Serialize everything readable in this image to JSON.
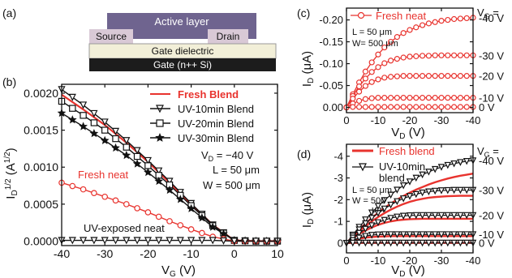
{
  "colors": {
    "red": "#e8332e",
    "black": "#111111",
    "layer": "#6f648f",
    "contact": "#d9c9d6",
    "dielectric": "#f2efd8",
    "gate": "#1c1c1c"
  },
  "panel_labels": {
    "a": "(a)",
    "b": "(b)",
    "c": "(c)",
    "d": "(d)"
  },
  "device": {
    "active_layer": "Active layer",
    "source": "Source",
    "drain": "Drain",
    "dielectric": "Gate dielectric",
    "gate": "Gate (n++ Si)"
  },
  "chart_data": [
    {
      "panel": "b",
      "type": "line",
      "xlabel": "V_G (V)",
      "ylabel": "I_D^1/2 (A^1/2)",
      "xlim": [
        -40,
        10
      ],
      "ylim": [
        -6e-05,
        0.00212
      ],
      "xticks": [
        "-40",
        "-30",
        "-20",
        "-10",
        "0",
        "10"
      ],
      "yticks": [
        "0.0000",
        "0.0005",
        "0.0010",
        "0.0015",
        "0.0020"
      ],
      "annotations": [
        "V_D = −40 V",
        "L = 50 μm",
        "W = 500 μm",
        "Fresh neat",
        "UV-exposed neat"
      ],
      "series": [
        {
          "name": "Fresh Blend",
          "marker": "none",
          "x": [
            -40,
            -35,
            -30,
            -25,
            -20,
            -15,
            -10,
            -5,
            0,
            5,
            10
          ],
          "y": [
            0.00198,
            0.00178,
            0.00157,
            0.00133,
            0.00107,
            0.00079,
            0.0005,
            0.00022,
            1e-05,
            0.0,
            0.0
          ]
        },
        {
          "name": "UV-10min Blend",
          "marker": "triangle-down",
          "x": [
            -40,
            -35,
            -30,
            -25,
            -20,
            -15,
            -10,
            -5,
            0,
            5,
            10
          ],
          "y": [
            0.00205,
            0.00184,
            0.00161,
            0.00136,
            0.00109,
            0.00081,
            0.00051,
            0.00022,
            1e-05,
            0.0,
            0.0
          ]
        },
        {
          "name": "UV-20min Blend",
          "marker": "square",
          "x": [
            -40,
            -35,
            -30,
            -25,
            -20,
            -15,
            -10,
            -5,
            0,
            5,
            10
          ],
          "y": [
            0.00189,
            0.0017,
            0.0015,
            0.00127,
            0.00102,
            0.00076,
            0.00048,
            0.00021,
            1e-05,
            0.0,
            0.0
          ]
        },
        {
          "name": "UV-30min Blend",
          "marker": "star",
          "x": [
            -40,
            -35,
            -30,
            -25,
            -20,
            -15,
            -10,
            -5,
            0,
            5,
            10
          ],
          "y": [
            0.00173,
            0.00155,
            0.00136,
            0.00116,
            0.00093,
            0.00069,
            0.00044,
            0.00019,
            1e-05,
            0.0,
            0.0
          ]
        },
        {
          "name": "Fresh neat",
          "marker": "circle",
          "x": [
            -40,
            -35,
            -30,
            -25,
            -20,
            -15,
            -10,
            -5,
            0,
            5,
            10
          ],
          "y": [
            0.00079,
            0.0007,
            0.0006,
            0.0005,
            0.00039,
            0.00027,
            0.00016,
            6e-05,
            0.0,
            0.0,
            0.0
          ]
        },
        {
          "name": "UV-exposed neat",
          "marker": "triangle-down",
          "x": [
            -40,
            -35,
            -30,
            -25,
            -20,
            -15,
            -10,
            -5,
            0,
            5,
            10
          ],
          "y": [
            1e-05,
            1e-05,
            1e-05,
            1e-05,
            1e-05,
            1e-05,
            1e-05,
            1e-05,
            0.0,
            0.0,
            0.0
          ]
        }
      ]
    },
    {
      "panel": "c",
      "type": "line",
      "xlabel": "V_D (V)",
      "ylabel": "I_D (μA)",
      "xlim": [
        0,
        -40
      ],
      "ylim": [
        0.012,
        -0.227
      ],
      "xticks": [
        "0",
        "-10",
        "-20",
        "-30",
        "-40"
      ],
      "yticks": [
        "0.00",
        "-0.05",
        "-0.10",
        "-0.15",
        "-0.20"
      ],
      "right_axis_title": "V_G =",
      "right_labels": [
        "-40 V",
        "-30 V",
        "-20 V",
        "-10 V",
        "0 V"
      ],
      "annotations": [
        "L = 50 μm",
        "W= 500 μm"
      ],
      "series": [
        {
          "name": "Fresh neat",
          "marker": "circle",
          "vg": "-40 V",
          "x": [
            0,
            -2,
            -4,
            -6,
            -8,
            -10,
            -12,
            -14,
            -16,
            -18,
            -20,
            -22,
            -24,
            -26,
            -28,
            -30,
            -32,
            -34,
            -36,
            -38,
            -40
          ],
          "y": [
            0.0,
            -0.03,
            -0.057,
            -0.082,
            -0.103,
            -0.121,
            -0.137,
            -0.15,
            -0.161,
            -0.17,
            -0.177,
            -0.183,
            -0.188,
            -0.192,
            -0.195,
            -0.198,
            -0.2,
            -0.202,
            -0.203,
            -0.204,
            -0.205
          ]
        },
        {
          "vg": "-30 V",
          "marker": "circle",
          "x": [
            0,
            -2,
            -4,
            -6,
            -8,
            -10,
            -12,
            -14,
            -16,
            -18,
            -20,
            -22,
            -24,
            -26,
            -28,
            -30,
            -32,
            -34,
            -36,
            -38,
            -40
          ],
          "y": [
            0.0,
            -0.026,
            -0.048,
            -0.066,
            -0.081,
            -0.092,
            -0.101,
            -0.107,
            -0.111,
            -0.114,
            -0.116,
            -0.117,
            -0.118,
            -0.118,
            -0.119,
            -0.119,
            -0.119,
            -0.119,
            -0.119,
            -0.119,
            -0.119
          ]
        },
        {
          "vg": "-20 V",
          "marker": "circle",
          "x": [
            0,
            -2,
            -4,
            -6,
            -8,
            -10,
            -12,
            -14,
            -16,
            -18,
            -20,
            -22,
            -24,
            -26,
            -28,
            -30,
            -32,
            -34,
            -36,
            -38,
            -40
          ],
          "y": [
            0.0,
            -0.02,
            -0.036,
            -0.049,
            -0.058,
            -0.064,
            -0.068,
            -0.07,
            -0.071,
            -0.072,
            -0.072,
            -0.072,
            -0.072,
            -0.072,
            -0.072,
            -0.072,
            -0.072,
            -0.072,
            -0.072,
            -0.072,
            -0.072
          ]
        },
        {
          "vg": "-10 V",
          "marker": "circle",
          "x": [
            0,
            -2,
            -4,
            -6,
            -8,
            -10,
            -12,
            -14,
            -16,
            -18,
            -20,
            -22,
            -24,
            -26,
            -28,
            -30,
            -32,
            -34,
            -36,
            -38,
            -40
          ],
          "y": [
            0.0,
            -0.009,
            -0.015,
            -0.019,
            -0.021,
            -0.022,
            -0.022,
            -0.022,
            -0.022,
            -0.022,
            -0.022,
            -0.022,
            -0.022,
            -0.022,
            -0.022,
            -0.022,
            -0.022,
            -0.022,
            -0.022,
            -0.022,
            -0.022
          ]
        },
        {
          "vg": "0 V",
          "marker": "circle",
          "x": [
            0,
            -2,
            -4,
            -6,
            -8,
            -10,
            -12,
            -14,
            -16,
            -18,
            -20,
            -22,
            -24,
            -26,
            -28,
            -30,
            -32,
            -34,
            -36,
            -38,
            -40
          ],
          "y": [
            0.0,
            -0.001,
            -0.001,
            -0.001,
            -0.001,
            -0.001,
            -0.001,
            -0.001,
            -0.001,
            -0.001,
            -0.001,
            -0.001,
            -0.001,
            -0.001,
            -0.001,
            -0.001,
            -0.001,
            -0.001,
            -0.001,
            -0.001,
            -0.001
          ]
        }
      ]
    },
    {
      "panel": "d",
      "type": "line",
      "xlabel": "V_D (V)",
      "ylabel": "I_D (μA)",
      "xlim": [
        0,
        -40
      ],
      "ylim": [
        0.45,
        -4.55
      ],
      "xticks": [
        "0",
        "-10",
        "-20",
        "-30",
        "-40"
      ],
      "yticks": [
        "0",
        "-1",
        "-2",
        "-3",
        "-4"
      ],
      "right_axis_title": "V_G =",
      "right_labels": [
        "-40 V",
        "-30 V",
        "-20 V",
        "-10 V",
        "0 V"
      ],
      "annotations": [
        "L = 50 μm",
        "W = 500 μm"
      ],
      "legend": [
        "Fresh blend",
        "UV-10min blend"
      ],
      "fresh_blend": [
        {
          "vg": "-40 V",
          "x": [
            0,
            -2,
            -4,
            -6,
            -8,
            -10,
            -12,
            -14,
            -16,
            -18,
            -20,
            -22,
            -24,
            -26,
            -28,
            -30,
            -32,
            -34,
            -36,
            -38,
            -40
          ],
          "y": [
            0.0,
            -0.32,
            -0.62,
            -0.9,
            -1.16,
            -1.4,
            -1.62,
            -1.82,
            -2.0,
            -2.17,
            -2.32,
            -2.46,
            -2.58,
            -2.7,
            -2.8,
            -2.89,
            -2.97,
            -3.04,
            -3.1,
            -3.15,
            -3.2
          ]
        },
        {
          "vg": "-30 V",
          "x": [
            0,
            -2,
            -4,
            -6,
            -8,
            -10,
            -12,
            -14,
            -16,
            -18,
            -20,
            -22,
            -24,
            -26,
            -28,
            -30,
            -32,
            -34,
            -36,
            -38,
            -40
          ],
          "y": [
            0.0,
            -0.28,
            -0.54,
            -0.78,
            -1.0,
            -1.2,
            -1.38,
            -1.54,
            -1.68,
            -1.8,
            -1.9,
            -1.98,
            -2.04,
            -2.09,
            -2.12,
            -2.14,
            -2.16,
            -2.17,
            -2.18,
            -2.18,
            -2.18
          ]
        },
        {
          "vg": "-20 V",
          "x": [
            0,
            -2,
            -4,
            -6,
            -8,
            -10,
            -12,
            -14,
            -16,
            -18,
            -20,
            -22,
            -24,
            -26,
            -28,
            -30,
            -32,
            -34,
            -36,
            -38,
            -40
          ],
          "y": [
            0.0,
            -0.22,
            -0.42,
            -0.58,
            -0.72,
            -0.84,
            -0.93,
            -1.0,
            -1.05,
            -1.08,
            -1.1,
            -1.11,
            -1.12,
            -1.12,
            -1.12,
            -1.12,
            -1.12,
            -1.12,
            -1.12,
            -1.12,
            -1.12
          ]
        },
        {
          "vg": "-10 V",
          "x": [
            0,
            -2,
            -4,
            -6,
            -8,
            -10,
            -12,
            -14,
            -16,
            -18,
            -20,
            -22,
            -24,
            -26,
            -28,
            -30,
            -32,
            -34,
            -36,
            -38,
            -40
          ],
          "y": [
            0.0,
            -0.12,
            -0.2,
            -0.25,
            -0.28,
            -0.3,
            -0.31,
            -0.32,
            -0.32,
            -0.32,
            -0.32,
            -0.32,
            -0.32,
            -0.32,
            -0.32,
            -0.32,
            -0.32,
            -0.32,
            -0.32,
            -0.32,
            -0.32
          ]
        },
        {
          "vg": "0 V",
          "x": [
            0,
            -2,
            -4,
            -6,
            -8,
            -10,
            -12,
            -14,
            -16,
            -18,
            -20,
            -22,
            -24,
            -26,
            -28,
            -30,
            -32,
            -34,
            -36,
            -38,
            -40
          ],
          "y": [
            0.0,
            -0.01,
            -0.01,
            -0.01,
            -0.01,
            -0.01,
            -0.01,
            -0.01,
            -0.01,
            -0.01,
            -0.01,
            -0.01,
            -0.01,
            -0.01,
            -0.01,
            -0.01,
            -0.01,
            -0.01,
            -0.01,
            -0.01,
            -0.01
          ]
        }
      ],
      "uv10_blend": [
        {
          "vg": "-40 V",
          "x": [
            0,
            -2,
            -4,
            -6,
            -8,
            -10,
            -12,
            -14,
            -16,
            -18,
            -20,
            -22,
            -24,
            -26,
            -28,
            -30,
            -32,
            -34,
            -36,
            -38,
            -40
          ],
          "y": [
            0.0,
            -0.38,
            -0.74,
            -1.08,
            -1.4,
            -1.7,
            -1.97,
            -2.22,
            -2.45,
            -2.65,
            -2.83,
            -3.0,
            -3.15,
            -3.28,
            -3.4,
            -3.5,
            -3.59,
            -3.66,
            -3.72,
            -3.77,
            -3.8
          ]
        },
        {
          "vg": "-30 V",
          "x": [
            0,
            -2,
            -4,
            -6,
            -8,
            -10,
            -12,
            -14,
            -16,
            -18,
            -20,
            -22,
            -24,
            -26,
            -28,
            -30,
            -32,
            -34,
            -36,
            -38,
            -40
          ],
          "y": [
            0.0,
            -0.32,
            -0.62,
            -0.9,
            -1.15,
            -1.38,
            -1.58,
            -1.76,
            -1.92,
            -2.05,
            -2.16,
            -2.25,
            -2.32,
            -2.37,
            -2.4,
            -2.42,
            -2.43,
            -2.44,
            -2.44,
            -2.44,
            -2.44
          ]
        },
        {
          "vg": "-20 V",
          "x": [
            0,
            -2,
            -4,
            -6,
            -8,
            -10,
            -12,
            -14,
            -16,
            -18,
            -20,
            -22,
            -24,
            -26,
            -28,
            -30,
            -32,
            -34,
            -36,
            -38,
            -40
          ],
          "y": [
            0.0,
            -0.24,
            -0.46,
            -0.65,
            -0.81,
            -0.95,
            -1.06,
            -1.15,
            -1.21,
            -1.25,
            -1.27,
            -1.28,
            -1.28,
            -1.28,
            -1.28,
            -1.28,
            -1.28,
            -1.28,
            -1.28,
            -1.28,
            -1.28
          ]
        },
        {
          "vg": "-10 V",
          "x": [
            0,
            -2,
            -4,
            -6,
            -8,
            -10,
            -12,
            -14,
            -16,
            -18,
            -20,
            -22,
            -24,
            -26,
            -28,
            -30,
            -32,
            -34,
            -36,
            -38,
            -40
          ],
          "y": [
            0.0,
            -0.13,
            -0.24,
            -0.32,
            -0.37,
            -0.39,
            -0.4,
            -0.4,
            -0.4,
            -0.4,
            -0.4,
            -0.4,
            -0.4,
            -0.4,
            -0.4,
            -0.4,
            -0.4,
            -0.4,
            -0.4,
            -0.4,
            -0.4
          ]
        },
        {
          "vg": "0 V",
          "x": [
            0,
            -2,
            -4,
            -6,
            -8,
            -10,
            -12,
            -14,
            -16,
            -18,
            -20,
            -22,
            -24,
            -26,
            -28,
            -30,
            -32,
            -34,
            -36,
            -38,
            -40
          ],
          "y": [
            0.0,
            -0.01,
            -0.01,
            -0.01,
            -0.01,
            -0.01,
            -0.01,
            -0.01,
            -0.01,
            -0.01,
            -0.01,
            -0.01,
            -0.01,
            -0.01,
            -0.01,
            -0.01,
            -0.01,
            -0.01,
            -0.01,
            -0.01,
            -0.01
          ]
        }
      ]
    }
  ]
}
